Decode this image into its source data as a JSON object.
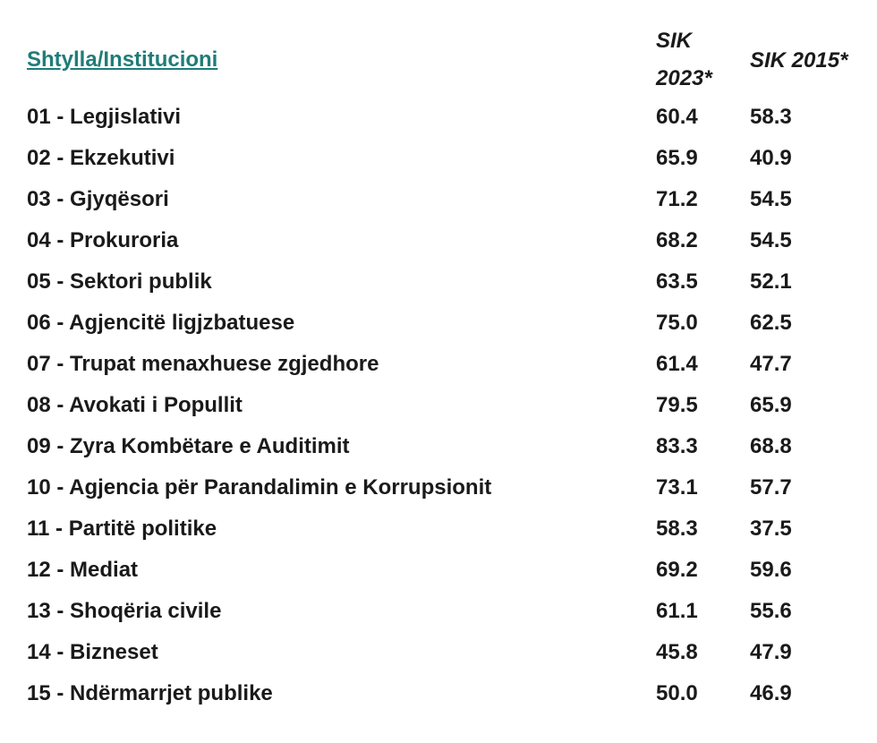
{
  "header": {
    "column_name": "Shtylla/Institucioni",
    "col_2023_line1": "SIK",
    "col_2023_line2": "2023*",
    "col_2015": "SIK 2015*"
  },
  "rows": [
    {
      "label": "01 - Legjislativi",
      "sik2023": "60.4",
      "sik2015": "58.3"
    },
    {
      "label": "02 - Ekzekutivi",
      "sik2023": "65.9",
      "sik2015": "40.9"
    },
    {
      "label": "03 - Gjyqësori",
      "sik2023": "71.2",
      "sik2015": "54.5"
    },
    {
      "label": "04 - Prokuroria",
      "sik2023": "68.2",
      "sik2015": "54.5"
    },
    {
      "label": "05 - Sektori publik",
      "sik2023": "63.5",
      "sik2015": "52.1"
    },
    {
      "label": "06 - Agjencitë ligjzbatuese",
      "sik2023": "75.0",
      "sik2015": "62.5"
    },
    {
      "label": "07 - Trupat menaxhuese zgjedhore",
      "sik2023": "61.4",
      "sik2015": "47.7"
    },
    {
      "label": "08 - Avokati i Popullit",
      "sik2023": "79.5",
      "sik2015": "65.9"
    },
    {
      "label": "09 - Zyra Kombëtare e Auditimit",
      "sik2023": "83.3",
      "sik2015": "68.8"
    },
    {
      "label": "10 - Agjencia për Parandalimin e Korrupsionit",
      "sik2023": "73.1",
      "sik2015": "57.7"
    },
    {
      "label": "11 - Partitë politike",
      "sik2023": "58.3",
      "sik2015": "37.5"
    },
    {
      "label": "12 - Mediat",
      "sik2023": "69.2",
      "sik2015": "59.6"
    },
    {
      "label": "13 - Shoqëria civile",
      "sik2023": "61.1",
      "sik2015": "55.6"
    },
    {
      "label": "14 - Bizneset",
      "sik2023": "45.8",
      "sik2015": "47.9"
    },
    {
      "label": "15 - Ndërmarrjet publike",
      "sik2023": "50.0",
      "sik2015": "46.9"
    }
  ],
  "colors": {
    "link": "#1f7c78",
    "text": "#1a1a1a"
  }
}
